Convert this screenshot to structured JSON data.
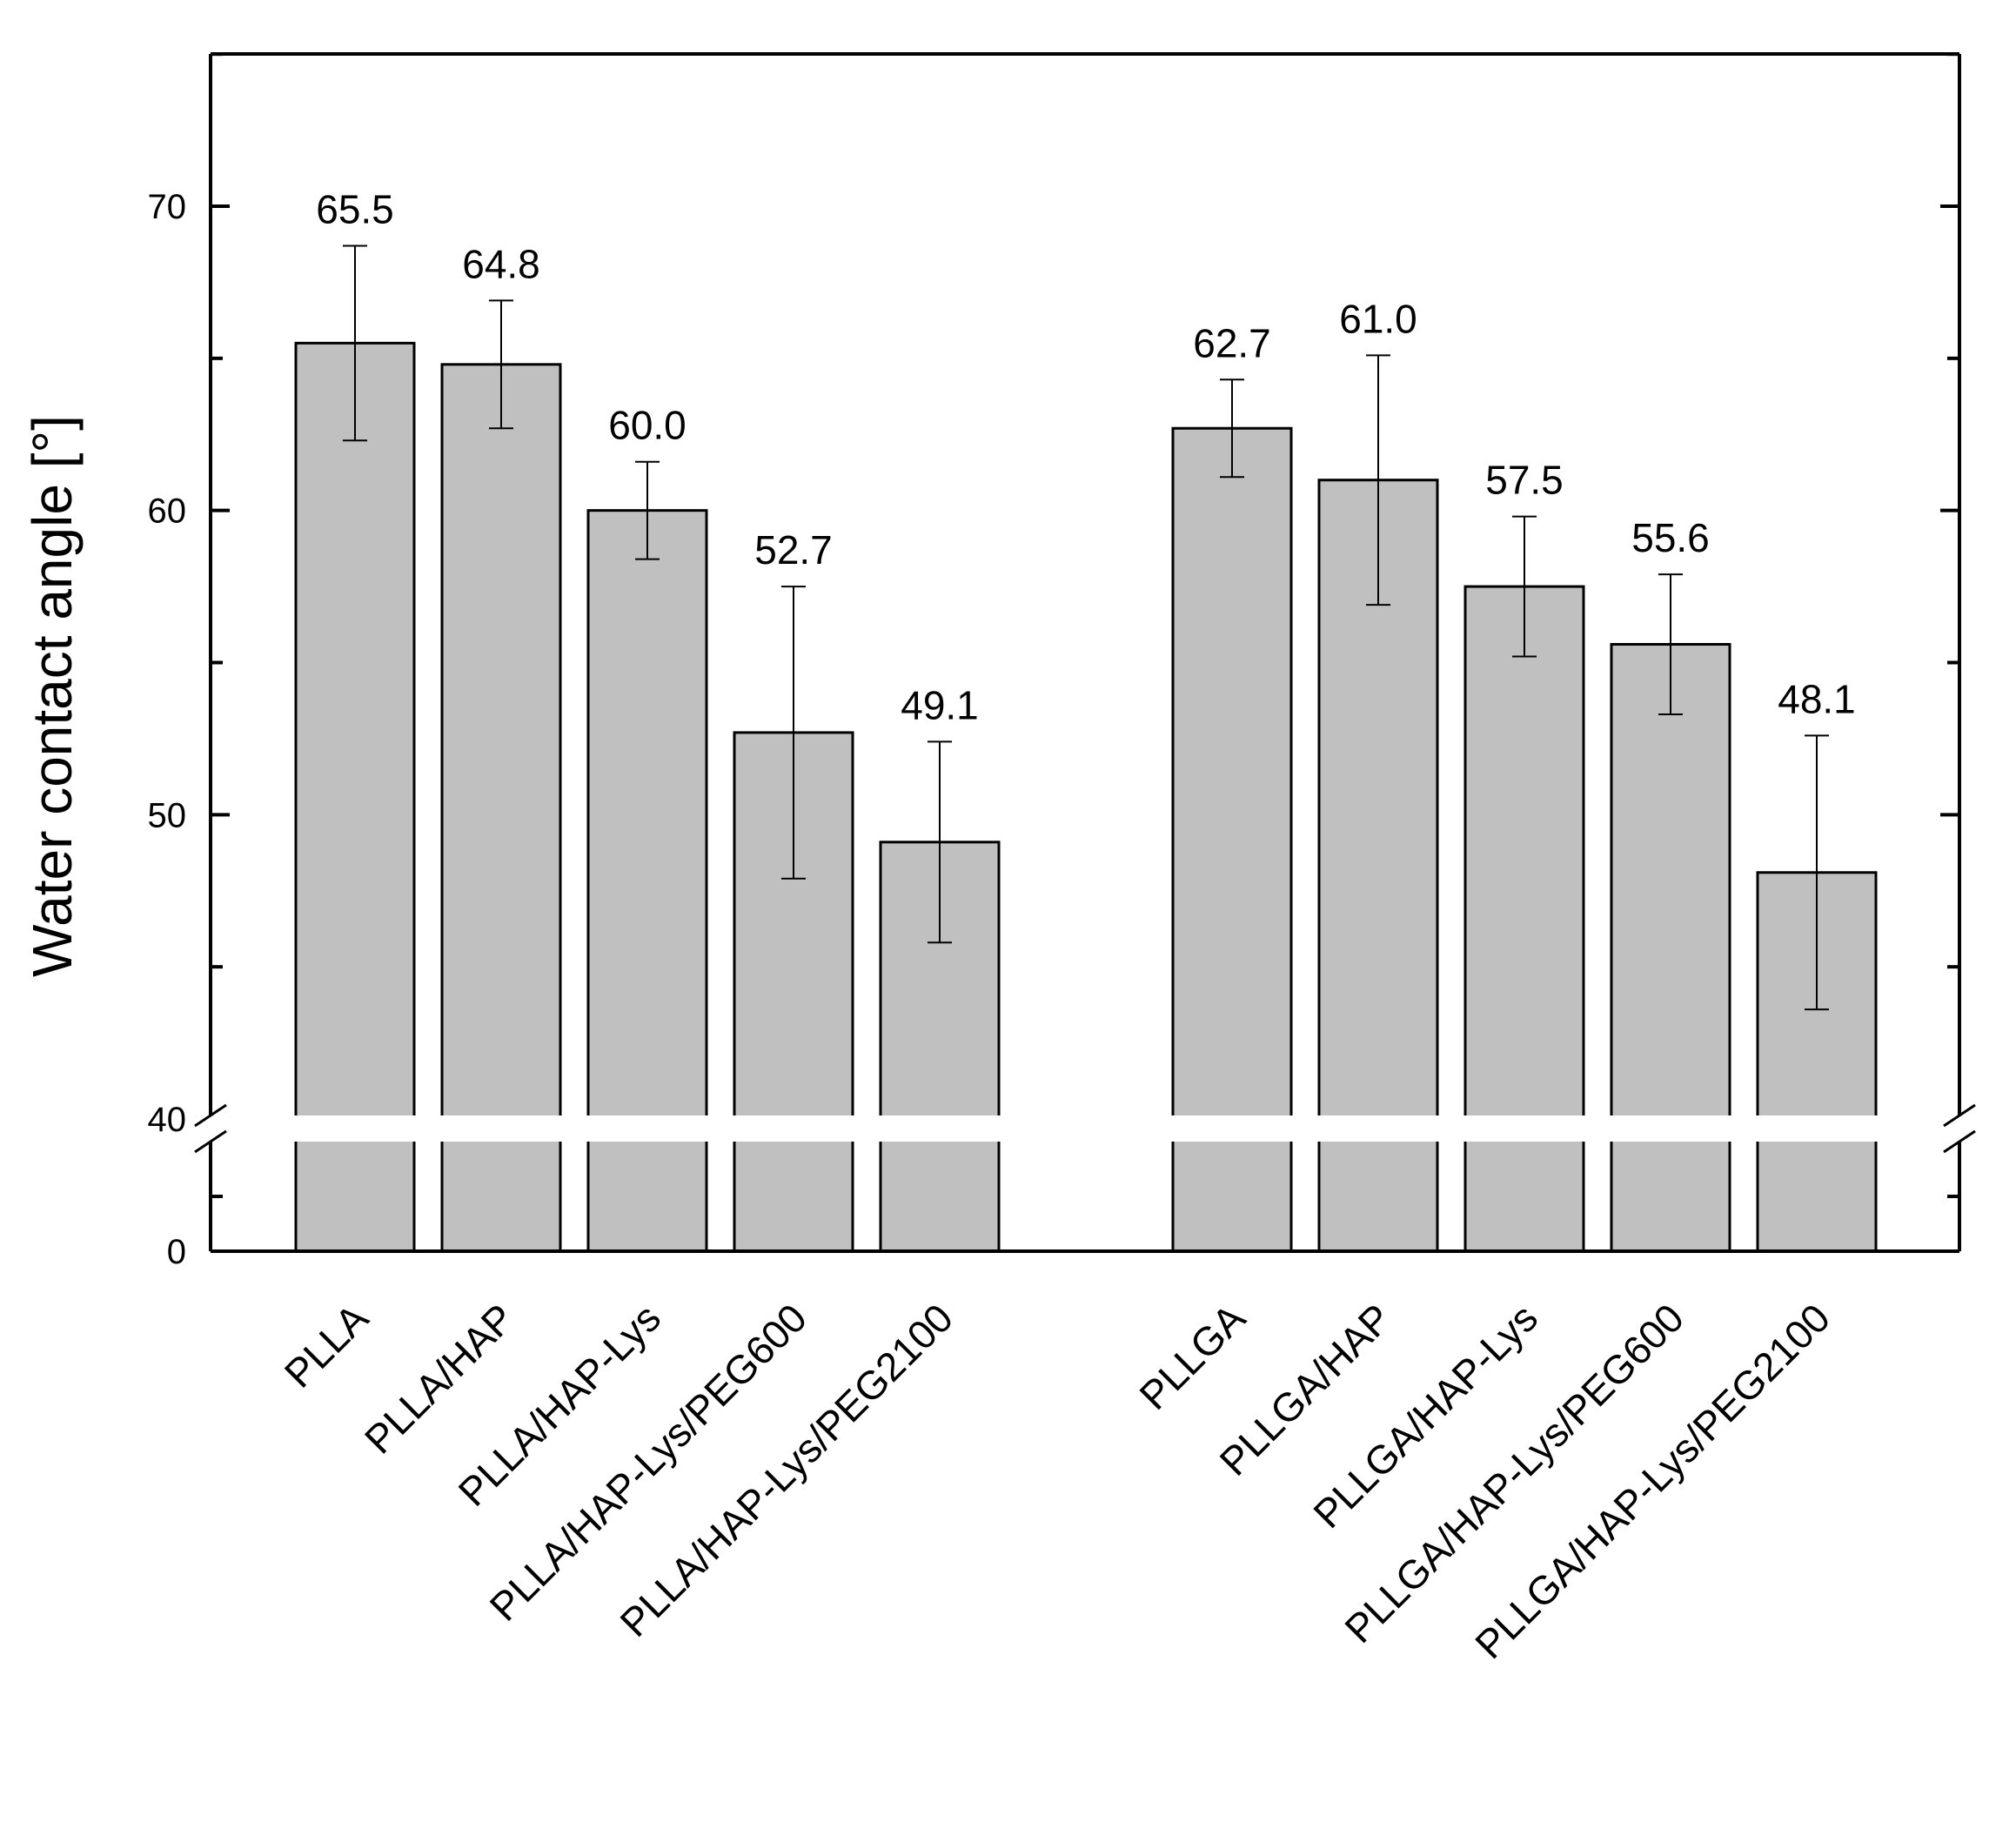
{
  "chart_data": {
    "type": "bar",
    "ylabel": "Water contact angle [°]",
    "xlabel": "",
    "title": "",
    "y_axis_break": {
      "below": [
        0,
        40
      ],
      "above": [
        40,
        75
      ]
    },
    "ylim_lower": [
      0,
      40
    ],
    "ylim_upper": [
      40,
      75
    ],
    "yticks_lower": [
      0
    ],
    "yticks_upper": [
      40,
      50,
      60,
      70
    ],
    "groups": [
      {
        "categories": [
          "PLLA",
          "PLLA/HAP",
          "PLLA/HAP-Lys",
          "PLLA/HAP-Lys/PEG600",
          "PLLA/HAP-Lys/PEG2100"
        ],
        "values": [
          65.5,
          64.8,
          60.0,
          52.7,
          49.1
        ],
        "errors": [
          3.2,
          2.1,
          1.6,
          4.8,
          3.3
        ],
        "value_labels": [
          "65.5",
          "64.8",
          "60.0",
          "52.7",
          "49.1"
        ]
      },
      {
        "categories": [
          "PLLGA",
          "PLLGA/HAP",
          "PLLGA/HAP-Lys",
          "PLLGA/HAP-Lys/PEG600",
          "PLLGA/HAP-Lys/PEG2100"
        ],
        "values": [
          62.7,
          61.0,
          57.5,
          55.6,
          48.1
        ],
        "errors": [
          1.6,
          4.1,
          2.3,
          2.3,
          4.5
        ],
        "value_labels": [
          "62.7",
          "61.0",
          "57.5",
          "55.6",
          "48.1"
        ]
      }
    ],
    "bar_color": "#c0c0c0",
    "edge_color": "#000000",
    "grid": false,
    "legend": "none"
  }
}
